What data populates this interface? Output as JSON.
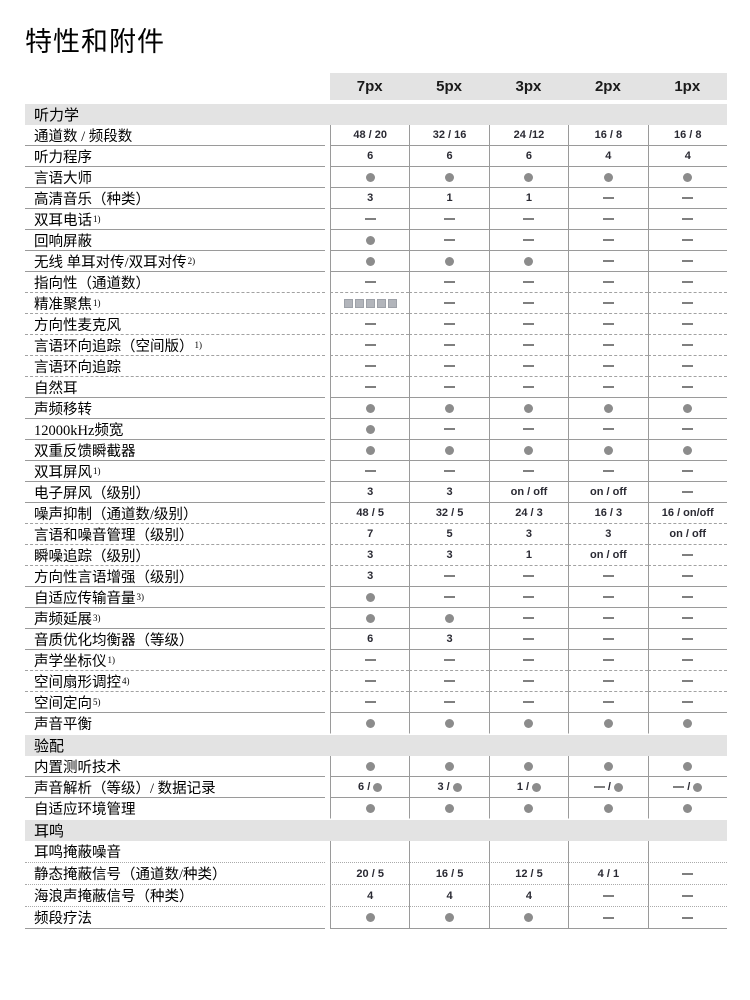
{
  "page_title": "特性和附件",
  "columns": [
    "7px",
    "5px",
    "3px",
    "2px",
    "1px"
  ],
  "colors": {
    "band_background": "#e3e3e3",
    "dot": "#8c8c8c",
    "dash": "#7f7f7f",
    "number_text": "#2a2a33",
    "grid_line": "#9a9a9a"
  },
  "legend": {
    "dot_symbol": "●",
    "dash_symbol": "—",
    "squares_symbol": "■■■■■"
  },
  "sections": [
    {
      "title": "听力学",
      "rows": [
        {
          "label": "通道数 / 频段数",
          "sup": "",
          "values": [
            "48 / 20",
            "32 / 16",
            "24 /12",
            "16 / 8",
            "16 / 8"
          ],
          "divider": "solid"
        },
        {
          "label": "听力程序",
          "sup": "",
          "values": [
            "6",
            "6",
            "6",
            "4",
            "4"
          ],
          "divider": "solid"
        },
        {
          "label": "言语大师",
          "sup": "",
          "values": [
            "●",
            "●",
            "●",
            "●",
            "●"
          ],
          "divider": "solid"
        },
        {
          "label": "高清音乐（种类）",
          "sup": "",
          "values": [
            "3",
            "1",
            "1",
            "—",
            "—"
          ],
          "divider": "solid"
        },
        {
          "label": "双耳电话",
          "sup": "1)",
          "values": [
            "—",
            "—",
            "—",
            "—",
            "—"
          ],
          "divider": "solid"
        },
        {
          "label": "回响屏蔽",
          "sup": "",
          "values": [
            "●",
            "—",
            "—",
            "—",
            "—"
          ],
          "divider": "solid"
        },
        {
          "label": "无线 单耳对传/双耳对传",
          "sup": "2)",
          "values": [
            "●",
            "●",
            "●",
            "—",
            "—"
          ],
          "divider": "solid"
        },
        {
          "label": "指向性（通道数）",
          "sup": "",
          "values": [
            "—",
            "—",
            "—",
            "—",
            "—"
          ],
          "divider": "dashed"
        },
        {
          "label": "精准聚焦",
          "sup": "1)",
          "values": [
            "■■■■■",
            "—",
            "—",
            "—",
            "—"
          ],
          "divider": "dashed"
        },
        {
          "label": "方向性麦克风",
          "sup": "",
          "values": [
            "—",
            "—",
            "—",
            "—",
            "—"
          ],
          "divider": "dashed"
        },
        {
          "label": "言语环向追踪（空间版） ",
          "sup": "1)",
          "values": [
            "—",
            "—",
            "—",
            "—",
            "—"
          ],
          "divider": "dashed"
        },
        {
          "label": "言语环向追踪",
          "sup": "",
          "values": [
            "—",
            "—",
            "—",
            "—",
            "—"
          ],
          "divider": "dashed"
        },
        {
          "label": "自然耳",
          "sup": "",
          "values": [
            "—",
            "—",
            "—",
            "—",
            "—"
          ],
          "divider": "solid"
        },
        {
          "label": "声频移转",
          "sup": "",
          "values": [
            "●",
            "●",
            "●",
            "●",
            "●"
          ],
          "divider": "solid"
        },
        {
          "label": "12000kHz频宽",
          "sup": "",
          "values": [
            "●",
            "—",
            "—",
            "—",
            "—"
          ],
          "divider": "solid"
        },
        {
          "label": "双重反馈瞬截器",
          "sup": "",
          "values": [
            "●",
            "●",
            "●",
            "●",
            "●"
          ],
          "divider": "solid"
        },
        {
          "label": "双耳屏风",
          "sup": "1)",
          "values": [
            "—",
            "—",
            "—",
            "—",
            "—"
          ],
          "divider": "solid"
        },
        {
          "label": "电子屏风（级别）",
          "sup": "",
          "values": [
            "3",
            "3",
            "on / off",
            "on / off",
            "—"
          ],
          "divider": "solid"
        },
        {
          "label": "噪声抑制（通道数/级别）",
          "sup": "",
          "values": [
            "48 / 5",
            "32 / 5",
            "24 / 3",
            "16 / 3",
            "16 / on/off"
          ],
          "divider": "dashed"
        },
        {
          "label": "言语和噪音管理（级别）",
          "sup": "",
          "values": [
            "7",
            "5",
            "3",
            "3",
            "on / off"
          ],
          "divider": "dashed"
        },
        {
          "label": "瞬噪追踪（级别）",
          "sup": "",
          "values": [
            "3",
            "3",
            "1",
            "on / off",
            "—"
          ],
          "divider": "dashed"
        },
        {
          "label": "方向性言语增强（级别）",
          "sup": "",
          "values": [
            "3",
            "—",
            "—",
            "—",
            "—"
          ],
          "divider": "solid"
        },
        {
          "label": "自适应传输音量",
          "sup": "3)",
          "values": [
            "●",
            "—",
            "—",
            "—",
            "—"
          ],
          "divider": "solid"
        },
        {
          "label": "声频延展",
          "sup": "3)",
          "values": [
            "●",
            "●",
            "—",
            "—",
            "—"
          ],
          "divider": "solid"
        },
        {
          "label": "音质优化均衡器（等级）",
          "sup": "",
          "values": [
            "6",
            "3",
            "—",
            "—",
            "—"
          ],
          "divider": "solid"
        },
        {
          "label": "声学坐标仪",
          "sup": "1)",
          "values": [
            "—",
            "—",
            "—",
            "—",
            "—"
          ],
          "divider": "dashed"
        },
        {
          "label": "空间扇形调控",
          "sup": "4)",
          "values": [
            "—",
            "—",
            "—",
            "—",
            "—"
          ],
          "divider": "dashed"
        },
        {
          "label": "空间定向",
          "sup": "5)",
          "values": [
            "—",
            "—",
            "—",
            "—",
            "—"
          ],
          "divider": "solid"
        },
        {
          "label": "声音平衡",
          "sup": "",
          "values": [
            "●",
            "●",
            "●",
            "●",
            "●"
          ],
          "divider": "none"
        }
      ]
    },
    {
      "title": "验配",
      "rows": [
        {
          "label": "内置测听技术",
          "sup": "",
          "values": [
            "●",
            "●",
            "●",
            "●",
            "●"
          ],
          "divider": "solid"
        },
        {
          "label": "声音解析（等级）/  数据记录",
          "sup": "",
          "values": [
            "6 / ●",
            "3 / ●",
            "1 / ●",
            "— / ●",
            "— / ●"
          ],
          "divider": "solid"
        },
        {
          "label": "自适应环境管理",
          "sup": "",
          "values": [
            "●",
            "●",
            "●",
            "●",
            "●"
          ],
          "divider": "none"
        }
      ]
    },
    {
      "title": "耳鸣",
      "rows": [
        {
          "label": "耳鸣掩蔽噪音",
          "sup": "",
          "values": [
            "",
            "",
            "",
            "",
            ""
          ],
          "divider": "dotted",
          "tall": true
        },
        {
          "label": "静态掩蔽信号（通道数/种类）",
          "sup": "",
          "values": [
            "20 / 5",
            "16 / 5",
            "12 / 5",
            "4 / 1",
            "—"
          ],
          "divider": "dotted",
          "tall": true
        },
        {
          "label": "海浪声掩蔽信号（种类）",
          "sup": "",
          "values": [
            "4",
            "4",
            "4",
            "—",
            "—"
          ],
          "divider": "dotted",
          "tall": true
        },
        {
          "label": "频段疗法",
          "sup": "",
          "values": [
            "●",
            "●",
            "●",
            "—",
            "—"
          ],
          "divider": "solid",
          "tall": true
        }
      ]
    }
  ]
}
